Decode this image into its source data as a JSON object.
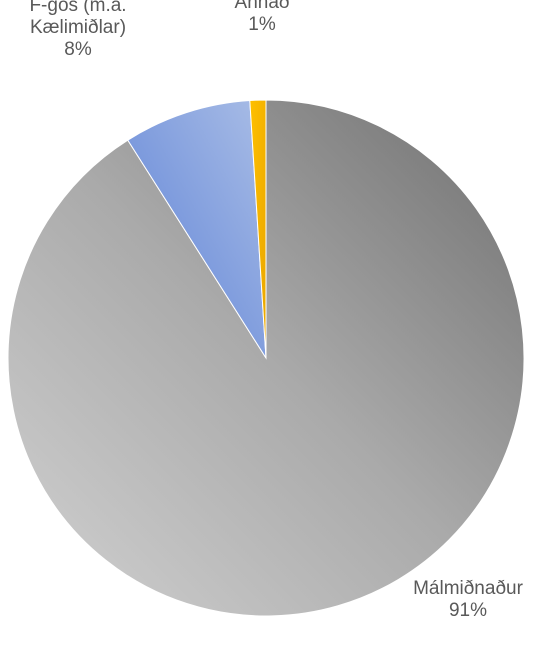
{
  "chart_data": {
    "type": "pie",
    "title": "",
    "start_angle_deg": 0,
    "direction": "clockwise",
    "slices": [
      {
        "name": "Málmiðnaður",
        "percent_label": "91%",
        "value": 91,
        "color": "#a6a6a6"
      },
      {
        "name": "F-gös (m.a.|Kælimiðlar)",
        "percent_label": "8%",
        "value": 8,
        "color": "#8fa9dc"
      },
      {
        "name": "Annað",
        "percent_label": "1%",
        "value": 1,
        "color": "#ffc000"
      }
    ],
    "legend": "none"
  }
}
